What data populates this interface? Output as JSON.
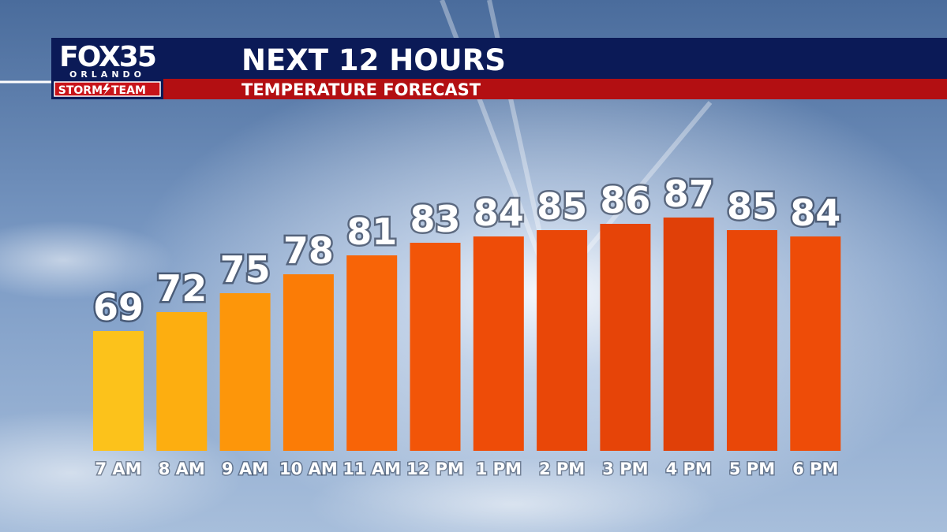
{
  "chart_data": {
    "type": "bar",
    "logo": {
      "name": "FOX35",
      "city": "ORLANDO",
      "team_left": "STORM",
      "team_right": "TEAM"
    },
    "title": "NEXT 12 HOURS",
    "subtitle": "TEMPERATURE FORECAST",
    "categories": [
      "7 AM",
      "8 AM",
      "9 AM",
      "10 AM",
      "11 AM",
      "12 PM",
      "1 PM",
      "2 PM",
      "3 PM",
      "4 PM",
      "5 PM",
      "6 PM"
    ],
    "values": [
      69,
      72,
      75,
      78,
      81,
      83,
      84,
      85,
      86,
      87,
      85,
      84
    ],
    "colors": [
      "#fcc21b",
      "#fdae10",
      "#fd960a",
      "#fb7c06",
      "#f86407",
      "#f25508",
      "#ee4c08",
      "#e94708",
      "#e64408",
      "#e04008",
      "#e94708",
      "#ee4c08"
    ],
    "ylim": [
      50,
      90
    ]
  }
}
